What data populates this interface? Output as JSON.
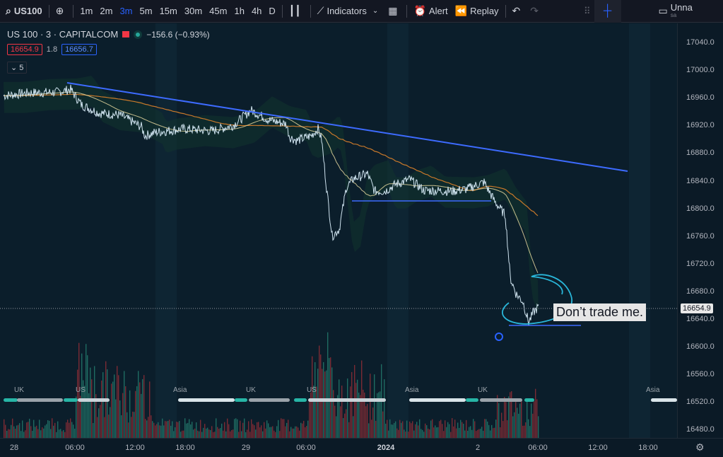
{
  "toolbar": {
    "symbol": "US100",
    "intervals": [
      "1m",
      "2m",
      "3m",
      "5m",
      "15m",
      "30m",
      "45m",
      "1h",
      "4h",
      "D"
    ],
    "active_interval": "3m",
    "indicators_label": "Indicators",
    "alert_label": "Alert",
    "replay_label": "Replay",
    "layout_label": "Unna",
    "layout_sub": "sa"
  },
  "legend": {
    "title": "US 100 · 3 · CAPITALCOM",
    "change": "−156.6 (−0.93%)",
    "sell_price": "16654.9",
    "spread": "1.8",
    "buy_price": "16656.7",
    "collapse_count": "5"
  },
  "note": "Don’t trade me.",
  "price_scale": {
    "labels": [
      "17040.0",
      "17000.0",
      "16960.0",
      "16920.0",
      "16880.0",
      "16840.0",
      "16800.0",
      "16760.0",
      "16720.0",
      "16680.0",
      "16640.0",
      "16600.0",
      "16560.0",
      "16520.0",
      "16480.0"
    ],
    "last_price": "16654.9"
  },
  "time_axis": {
    "labels": [
      {
        "text": "28",
        "bold": false
      },
      {
        "text": "06:00",
        "bold": false
      },
      {
        "text": "12:00",
        "bold": false
      },
      {
        "text": "18:00",
        "bold": false
      },
      {
        "text": "29",
        "bold": false
      },
      {
        "text": "06:00",
        "bold": false
      },
      {
        "text": "2024",
        "bold": true
      },
      {
        "text": "2",
        "bold": false
      },
      {
        "text": "06:00",
        "bold": false
      },
      {
        "text": "12:00",
        "bold": false
      },
      {
        "text": "18:00",
        "bold": false
      }
    ]
  },
  "sessions": [
    {
      "label": "UK"
    },
    {
      "label": "US"
    },
    {
      "label": "Asia"
    },
    {
      "label": "UK"
    },
    {
      "label": "US"
    },
    {
      "label": "Asia"
    },
    {
      "label": "UK"
    },
    {
      "label": "Asia"
    }
  ],
  "colors": {
    "trendline": "#3d6bff",
    "price_line": "#cfe3ef",
    "vwap": "#e8d9a0",
    "ma": "#c8782a",
    "annotation": "#29b6d9",
    "volume_up": "#1f6b62",
    "volume_down": "#7a2b34"
  }
}
